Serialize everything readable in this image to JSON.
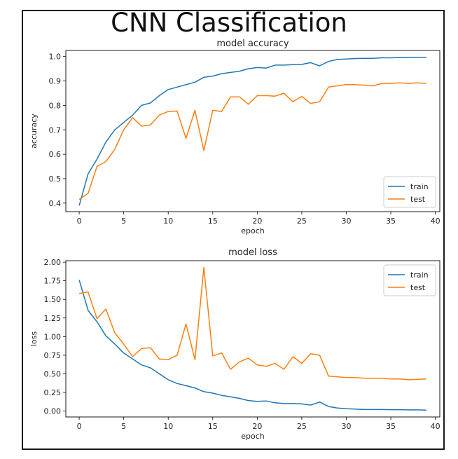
{
  "title": "CNN Classification",
  "colors": {
    "train": "#1f77b4",
    "test": "#ff7f0e",
    "axes": "#000000"
  },
  "chart_data": [
    {
      "id": "accuracy",
      "type": "line",
      "title": "model accuracy",
      "xlabel": "epoch",
      "ylabel": "accuracy",
      "xlim": [
        -1.5,
        40.5
      ],
      "ylim": [
        0.365,
        1.025
      ],
      "xticks": [
        0,
        5,
        10,
        15,
        20,
        25,
        30,
        35,
        40
      ],
      "yticks": [
        0.4,
        0.5,
        0.6,
        0.7,
        0.8,
        0.9,
        1.0
      ],
      "ytick_labels": [
        "0.4",
        "0.5",
        "0.6",
        "0.7",
        "0.8",
        "0.9",
        "1.0"
      ],
      "legend": "bottom-right",
      "x": [
        0,
        1,
        2,
        3,
        4,
        5,
        6,
        7,
        8,
        9,
        10,
        11,
        12,
        13,
        14,
        15,
        16,
        17,
        18,
        19,
        20,
        21,
        22,
        23,
        24,
        25,
        26,
        27,
        28,
        29,
        30,
        31,
        32,
        33,
        34,
        35,
        36,
        37,
        38,
        39
      ],
      "series": [
        {
          "name": "train",
          "values": [
            0.39,
            0.52,
            0.58,
            0.65,
            0.7,
            0.73,
            0.76,
            0.8,
            0.81,
            0.84,
            0.865,
            0.875,
            0.885,
            0.895,
            0.915,
            0.92,
            0.93,
            0.935,
            0.94,
            0.95,
            0.955,
            0.953,
            0.965,
            0.965,
            0.967,
            0.968,
            0.975,
            0.962,
            0.98,
            0.988,
            0.99,
            0.992,
            0.993,
            0.993,
            0.995,
            0.995,
            0.996,
            0.996,
            0.997,
            0.997
          ]
        },
        {
          "name": "test",
          "values": [
            0.415,
            0.44,
            0.55,
            0.57,
            0.62,
            0.7,
            0.75,
            0.715,
            0.72,
            0.76,
            0.775,
            0.777,
            0.665,
            0.78,
            0.615,
            0.78,
            0.775,
            0.835,
            0.835,
            0.805,
            0.84,
            0.84,
            0.838,
            0.85,
            0.815,
            0.837,
            0.808,
            0.815,
            0.875,
            0.88,
            0.885,
            0.885,
            0.883,
            0.88,
            0.89,
            0.89,
            0.892,
            0.89,
            0.892,
            0.89
          ]
        }
      ]
    },
    {
      "id": "loss",
      "type": "line",
      "title": "model loss",
      "xlabel": "epoch",
      "ylabel": "loss",
      "xlim": [
        -1.5,
        40.5
      ],
      "ylim": [
        -0.08,
        2.02
      ],
      "xticks": [
        0,
        5,
        10,
        15,
        20,
        25,
        30,
        35,
        40
      ],
      "yticks": [
        0,
        0.25,
        0.5,
        0.75,
        1.0,
        1.25,
        1.5,
        1.75,
        2.0
      ],
      "ytick_labels": [
        "0.00",
        "0.25",
        "0.50",
        "0.75",
        "1.00",
        "1.25",
        "1.50",
        "1.75",
        "2.00"
      ],
      "legend": "top-right",
      "x": [
        0,
        1,
        2,
        3,
        4,
        5,
        6,
        7,
        8,
        9,
        10,
        11,
        12,
        13,
        14,
        15,
        16,
        17,
        18,
        19,
        20,
        21,
        22,
        23,
        24,
        25,
        26,
        27,
        28,
        29,
        30,
        31,
        32,
        33,
        34,
        35,
        36,
        37,
        38,
        39
      ],
      "series": [
        {
          "name": "train",
          "values": [
            1.76,
            1.35,
            1.2,
            1.01,
            0.9,
            0.78,
            0.7,
            0.62,
            0.58,
            0.5,
            0.42,
            0.37,
            0.34,
            0.31,
            0.26,
            0.24,
            0.21,
            0.19,
            0.17,
            0.14,
            0.13,
            0.135,
            0.11,
            0.1,
            0.1,
            0.095,
            0.08,
            0.12,
            0.06,
            0.04,
            0.03,
            0.025,
            0.02,
            0.02,
            0.02,
            0.018,
            0.018,
            0.015,
            0.015,
            0.012
          ]
        },
        {
          "name": "test",
          "values": [
            1.58,
            1.6,
            1.24,
            1.37,
            1.05,
            0.9,
            0.73,
            0.84,
            0.85,
            0.7,
            0.69,
            0.75,
            1.17,
            0.69,
            1.93,
            0.74,
            0.78,
            0.56,
            0.66,
            0.71,
            0.62,
            0.6,
            0.64,
            0.56,
            0.73,
            0.64,
            0.77,
            0.75,
            0.47,
            0.46,
            0.45,
            0.45,
            0.44,
            0.44,
            0.44,
            0.43,
            0.43,
            0.42,
            0.425,
            0.43
          ]
        }
      ]
    }
  ]
}
